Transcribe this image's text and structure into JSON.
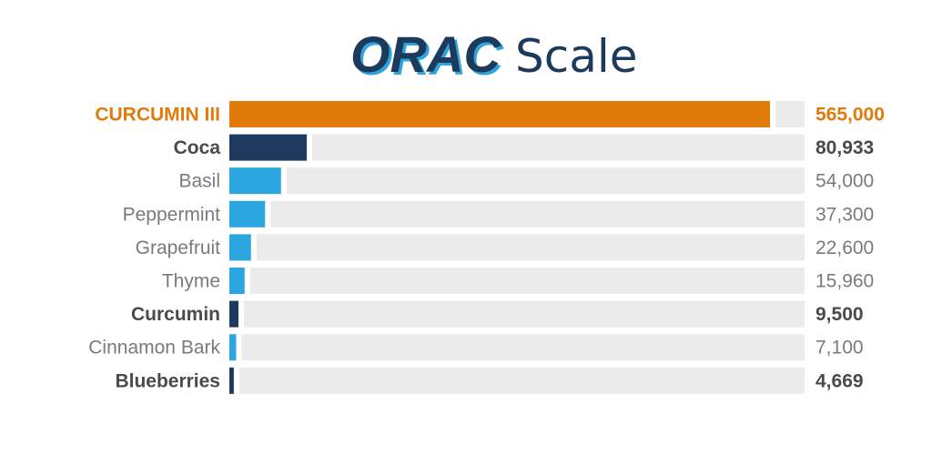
{
  "chart_data": {
    "type": "bar",
    "orientation": "horizontal",
    "title": "ORAC Scale",
    "title_parts": {
      "bold": "ORAC",
      "light": "Scale"
    },
    "categories": [
      "CURCUMIN III",
      "Coca",
      "Basil",
      "Peppermint",
      "Grapefruit",
      "Thyme",
      "Curcumin",
      "Cinnamon Bark",
      "Blueberries"
    ],
    "values": [
      565000,
      80933,
      54000,
      37300,
      22600,
      15960,
      9500,
      7100,
      4669
    ],
    "value_labels": [
      "565,000",
      "80,933",
      "54,000",
      "37,300",
      "22,600",
      "15,960",
      "9,500",
      "7,100",
      "4,669"
    ],
    "styles": [
      "highlight",
      "emphasis",
      "normal",
      "normal",
      "normal",
      "normal",
      "emphasis",
      "normal",
      "emphasis"
    ],
    "xlim": [
      0,
      565000
    ],
    "grid": false,
    "legend": "none"
  },
  "colors": {
    "title_dark": "#1b3a5c",
    "title_shadow": "#2fa3dc",
    "title_light": "#1b3a5c",
    "highlight": "#e07b0b",
    "emphasis": "#1e3a5f",
    "normal": "#2ba6e0",
    "track": "#ebebeb",
    "label_normal": "#7a7a7a",
    "label_emphasis": "#4a4a4a"
  }
}
